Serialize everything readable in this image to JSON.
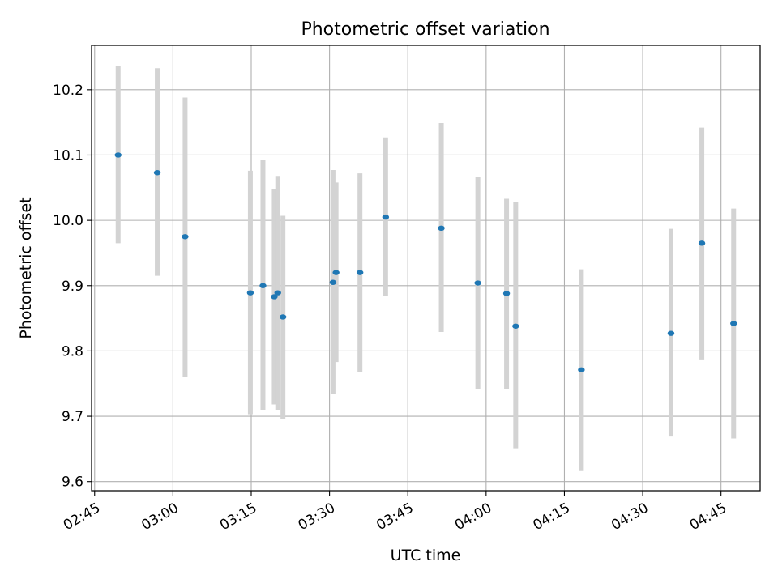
{
  "chart_data": {
    "type": "scatter",
    "title": "Photometric offset variation",
    "xlabel": "UTC time",
    "ylabel": "Photometric offset",
    "x_unit": "time (HH:MM)",
    "xlim": [
      "02:44:25",
      "04:52:30"
    ],
    "ylim": [
      9.586,
      10.268
    ],
    "grid": true,
    "xticks": [
      "02:45",
      "03:00",
      "03:15",
      "03:30",
      "03:45",
      "04:00",
      "04:15",
      "04:30",
      "04:45"
    ],
    "yticks": [
      "9.6",
      "9.7",
      "9.8",
      "9.9",
      "10.0",
      "10.1",
      "10.2"
    ],
    "series": [
      {
        "marker_color": "#1f77b4",
        "errorbar_color": "#d3d3d3",
        "points": [
          {
            "x": "02:49:30",
            "y": 10.1,
            "ylow": 9.965,
            "yhigh": 10.237
          },
          {
            "x": "02:57:00",
            "y": 10.073,
            "ylow": 9.915,
            "yhigh": 10.233
          },
          {
            "x": "03:02:20",
            "y": 9.975,
            "ylow": 9.76,
            "yhigh": 10.188
          },
          {
            "x": "03:14:50",
            "y": 9.889,
            "ylow": 9.703,
            "yhigh": 10.076
          },
          {
            "x": "03:17:15",
            "y": 9.9,
            "ylow": 9.71,
            "yhigh": 10.093
          },
          {
            "x": "03:19:25",
            "y": 9.883,
            "ylow": 9.718,
            "yhigh": 10.048
          },
          {
            "x": "03:20:05",
            "y": 9.889,
            "ylow": 9.71,
            "yhigh": 10.068
          },
          {
            "x": "03:21:05",
            "y": 9.852,
            "ylow": 9.696,
            "yhigh": 10.007
          },
          {
            "x": "03:30:40",
            "y": 9.905,
            "ylow": 9.734,
            "yhigh": 10.077
          },
          {
            "x": "03:31:15",
            "y": 9.92,
            "ylow": 9.783,
            "yhigh": 10.058
          },
          {
            "x": "03:35:50",
            "y": 9.92,
            "ylow": 9.768,
            "yhigh": 10.072
          },
          {
            "x": "03:40:45",
            "y": 10.005,
            "ylow": 9.884,
            "yhigh": 10.127
          },
          {
            "x": "03:51:25",
            "y": 9.988,
            "ylow": 9.829,
            "yhigh": 10.149
          },
          {
            "x": "03:58:25",
            "y": 9.904,
            "ylow": 9.742,
            "yhigh": 10.067
          },
          {
            "x": "04:03:55",
            "y": 9.888,
            "ylow": 9.742,
            "yhigh": 10.033
          },
          {
            "x": "04:05:40",
            "y": 9.838,
            "ylow": 9.651,
            "yhigh": 10.028
          },
          {
            "x": "04:18:15",
            "y": 9.771,
            "ylow": 9.616,
            "yhigh": 9.925
          },
          {
            "x": "04:35:25",
            "y": 9.827,
            "ylow": 9.669,
            "yhigh": 9.987
          },
          {
            "x": "04:41:20",
            "y": 9.965,
            "ylow": 9.787,
            "yhigh": 10.142
          },
          {
            "x": "04:47:25",
            "y": 9.842,
            "ylow": 9.666,
            "yhigh": 10.018
          }
        ]
      }
    ]
  }
}
